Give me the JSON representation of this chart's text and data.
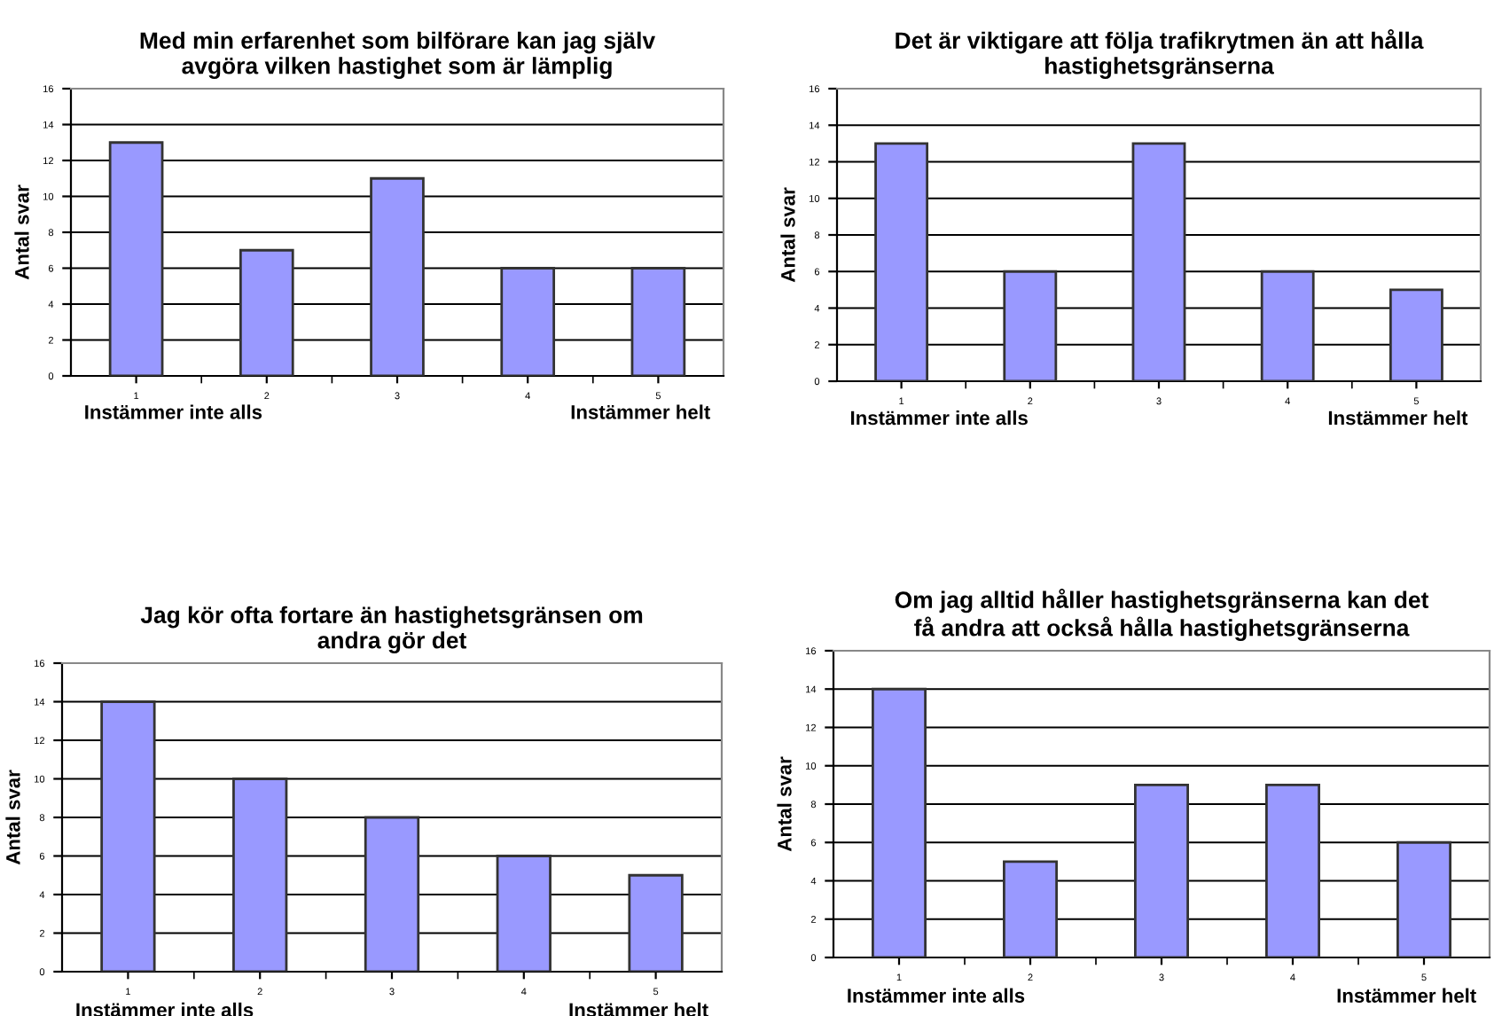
{
  "chart_data": [
    {
      "type": "bar",
      "title": "Med min erfarenhet som bilförare kan jag själv\navgöra vilken hastighet som är lämplig",
      "ylabel": "Antal svar",
      "categories": [
        "1",
        "2",
        "3",
        "4",
        "5"
      ],
      "values": [
        13,
        7,
        11,
        6,
        6
      ],
      "color": "#9999ff",
      "ylim": [
        0,
        16
      ],
      "yticks": [
        0,
        2,
        4,
        6,
        8,
        10,
        12,
        14,
        16
      ],
      "grid": "y",
      "annotations": [
        "Instämmer inte alls",
        "Instämmer helt"
      ]
    },
    {
      "type": "bar",
      "title": "Det är viktigare att följa trafikrytmen än att hålla\nhastighetsgränserna",
      "ylabel": "Antal svar",
      "categories": [
        "1",
        "2",
        "3",
        "4",
        "5"
      ],
      "values": [
        13,
        6,
        13,
        6,
        5
      ],
      "color": "#9999ff",
      "ylim": [
        0,
        16
      ],
      "yticks": [
        0,
        2,
        4,
        6,
        8,
        10,
        12,
        14,
        16
      ],
      "grid": "y",
      "annotations": [
        "Instämmer inte alls",
        "Instämmer helt"
      ]
    },
    {
      "type": "bar",
      "title": "Jag kör ofta fortare än hastighetsgränsen om\nandra gör det",
      "ylabel": "Antal svar",
      "categories": [
        "1",
        "2",
        "3",
        "4",
        "5"
      ],
      "values": [
        14,
        10,
        8,
        6,
        5
      ],
      "color": "#9999ff",
      "ylim": [
        0,
        16
      ],
      "yticks": [
        0,
        2,
        4,
        6,
        8,
        10,
        12,
        14,
        16
      ],
      "grid": "y",
      "annotations": [
        "Instämmer inte alls",
        "Instämmer helt"
      ]
    },
    {
      "type": "bar",
      "title": "Om jag alltid håller hastighetsgränserna kan det\nfå andra att också hålla hastighetsgränserna",
      "ylabel": "Antal svar",
      "categories": [
        "1",
        "2",
        "3",
        "4",
        "5"
      ],
      "values": [
        14,
        5,
        9,
        9,
        6
      ],
      "color": "#9999ff",
      "ylim": [
        0,
        16
      ],
      "yticks": [
        0,
        2,
        4,
        6,
        8,
        10,
        12,
        14,
        16
      ],
      "grid": "y",
      "annotations": [
        "Instämmer inte alls",
        "Instämmer helt"
      ]
    }
  ]
}
